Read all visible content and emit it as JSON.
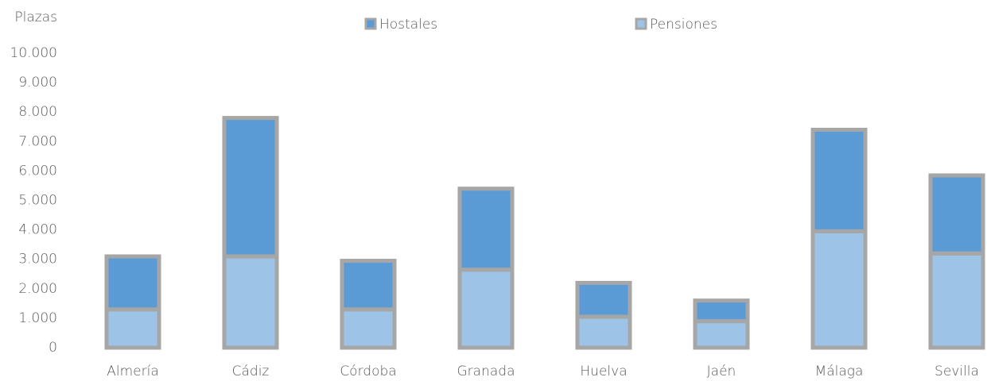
{
  "chart_data": {
    "type": "stacked_bar",
    "y_label": "Plazas",
    "categories": [
      "Almería",
      "Cádiz",
      "Córdoba",
      "Granada",
      "Huelva",
      "Jaén",
      "Málaga",
      "Sevilla"
    ],
    "series": [
      {
        "name": "Pensiones",
        "color": "#9dc3e6",
        "values": [
          1300,
          3100,
          1300,
          2650,
          1050,
          900,
          3950,
          3200
        ]
      },
      {
        "name": "Hostales",
        "color": "#5b9bd5",
        "values": [
          1800,
          4700,
          1650,
          2750,
          1150,
          700,
          3450,
          2650
        ]
      }
    ],
    "legend_order": [
      1,
      0
    ],
    "border_color": "#a6a6a6",
    "ylim": [
      0,
      10000
    ],
    "yticks": [
      0,
      {
        "value": 1000,
        "label": "1.000"
      },
      {
        "value": 2000,
        "label": "2.000"
      },
      {
        "value": 3000,
        "label": "3.000"
      },
      {
        "value": 4000,
        "label": "4.000"
      },
      {
        "value": 5000,
        "label": "5.000"
      },
      {
        "value": 6000,
        "label": "6.000"
      },
      {
        "value": 7000,
        "label": "7.000"
      },
      {
        "value": 8000,
        "label": "8.000"
      },
      {
        "value": 9000,
        "label": "9.000"
      },
      {
        "value": 10000,
        "label": "10.000"
      }
    ]
  }
}
